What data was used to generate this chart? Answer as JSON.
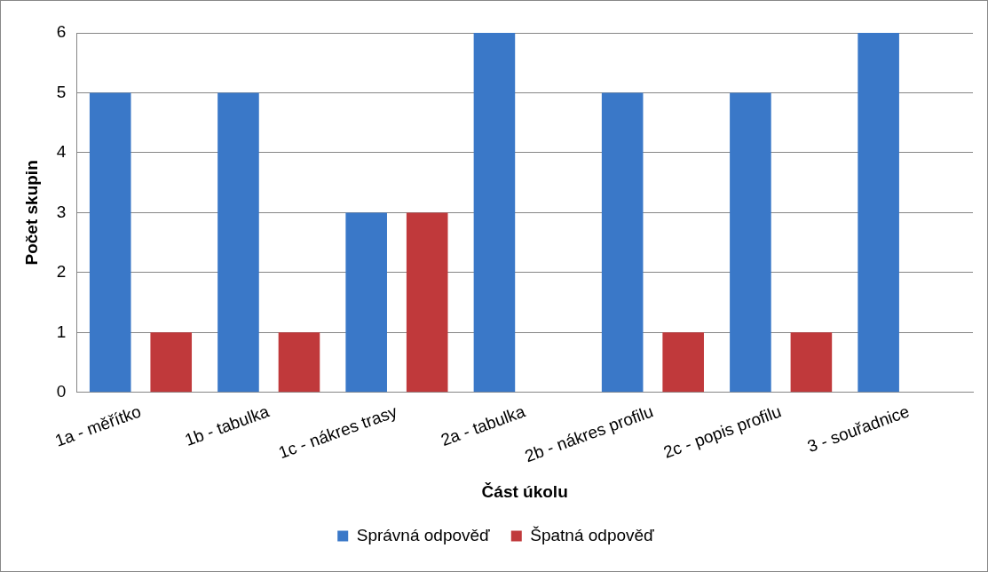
{
  "chart_data": {
    "type": "bar",
    "xlabel": "Část úkolu",
    "ylabel": "Počet skupin",
    "categories": [
      "1a - měřítko",
      "1b - tabulka",
      "1c - nákres trasy",
      "2a - tabulka",
      "2b - nákres profilu",
      "2c - popis profilu",
      "3 - souřadnice"
    ],
    "series": [
      {
        "name": "Správná odpověď",
        "color": "#3a78c8",
        "values": [
          5,
          5,
          3,
          6,
          5,
          5,
          6
        ]
      },
      {
        "name": "Špatná odpověď",
        "color": "#c0393b",
        "values": [
          1,
          1,
          3,
          0,
          1,
          1,
          0
        ]
      }
    ],
    "ylim": [
      0,
      6
    ],
    "yticks": [
      0,
      1,
      2,
      3,
      4,
      5,
      6
    ],
    "grid": "y",
    "legend": "bottom"
  }
}
